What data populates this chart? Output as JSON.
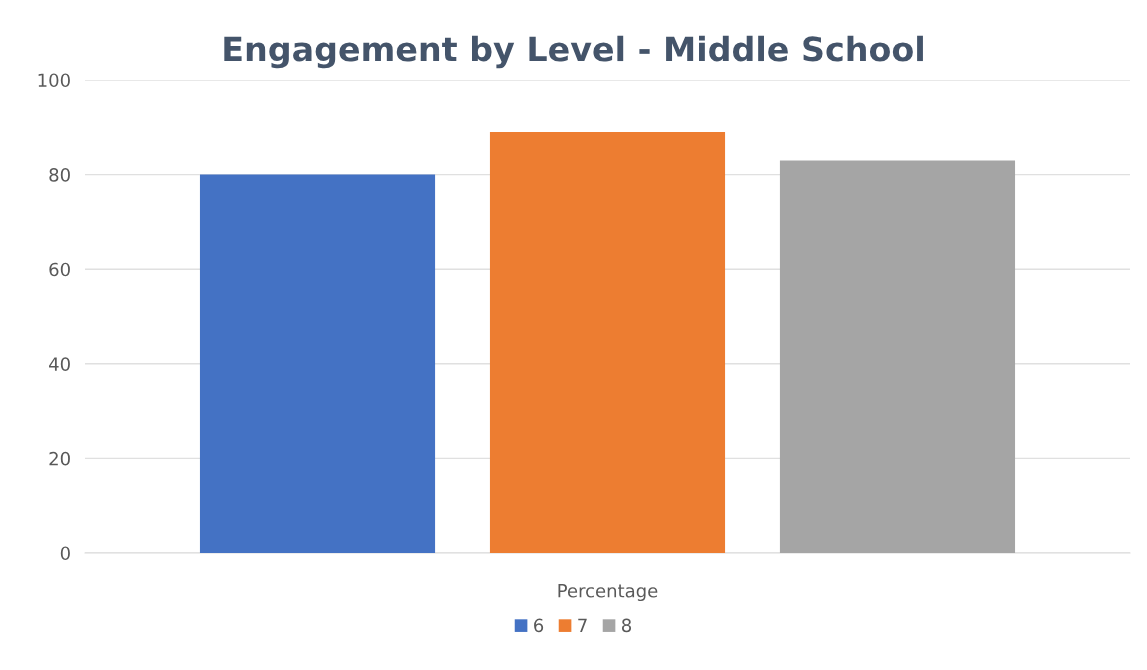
{
  "chart_data": {
    "type": "bar",
    "title": "Engagement by Level - Middle School",
    "categories": [
      "Percentage"
    ],
    "series": [
      {
        "name": "6",
        "color": "#4472c4",
        "values": [
          80
        ]
      },
      {
        "name": "7",
        "color": "#ed7d31",
        "values": [
          89
        ]
      },
      {
        "name": "8",
        "color": "#a5a5a5",
        "values": [
          83
        ]
      }
    ],
    "ylim": [
      0,
      100
    ],
    "yticks": [
      0,
      20,
      40,
      60,
      80,
      100
    ],
    "grid": "y",
    "legend": "bottom"
  }
}
